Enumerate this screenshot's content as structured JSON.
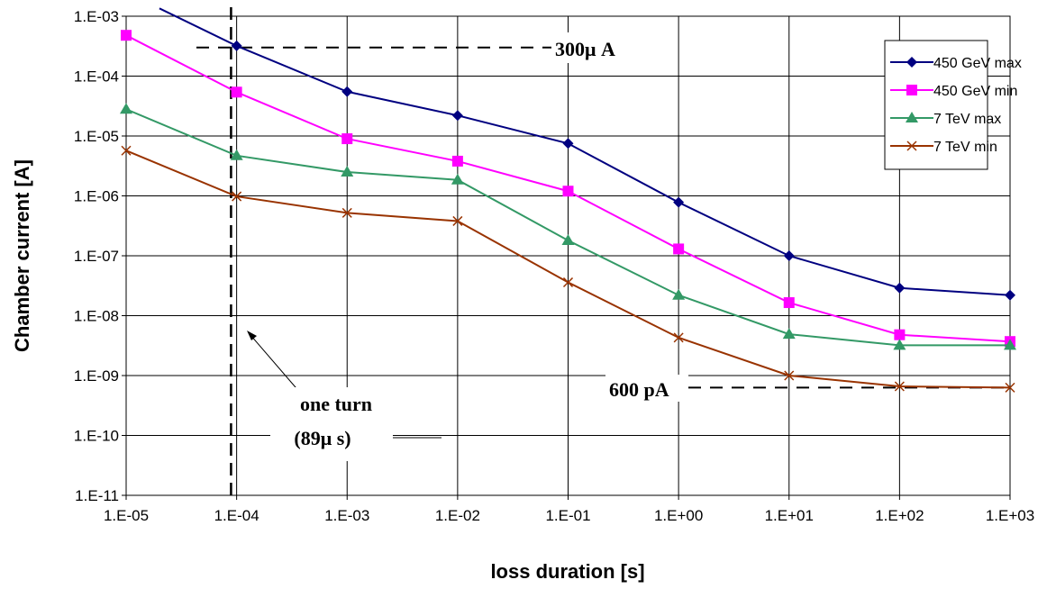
{
  "chart_data": {
    "type": "line",
    "xscale": "log",
    "yscale": "log",
    "xlabel": "loss duration [s]",
    "ylabel": "Chamber current [A]",
    "xlim": [
      1e-05,
      1000.0
    ],
    "ylim": [
      1e-11,
      0.001
    ],
    "x_tick_labels": [
      "1.E-05",
      "1.E-04",
      "1.E-03",
      "1.E-02",
      "1.E-01",
      "1.E+00",
      "1.E+01",
      "1.E+02",
      "1.E+03"
    ],
    "y_tick_labels": [
      "1.E-11",
      "1.E-10",
      "1.E-09",
      "1.E-08",
      "1.E-07",
      "1.E-06",
      "1.E-05",
      "1.E-04",
      "1.E-03"
    ],
    "grid": true,
    "legend_position": "top-right",
    "x": [
      1e-05,
      0.0001,
      0.001,
      0.01,
      0.1,
      1,
      10,
      100,
      1000
    ],
    "series": [
      {
        "name": "450 GeV max",
        "color": "#000080",
        "marker": "diamond",
        "line_start_x": 2e-05,
        "line_start_y": 0.00135,
        "values": [
          null,
          0.00032,
          5.5e-05,
          2.2e-05,
          7.5e-06,
          7.8e-07,
          1e-07,
          2.9e-08,
          2.2e-08
        ]
      },
      {
        "name": "450 GeV min",
        "color": "#FF00FF",
        "marker": "square",
        "values": [
          0.00048,
          5.4e-05,
          9e-06,
          3.8e-06,
          1.2e-06,
          1.3e-07,
          1.65e-08,
          4.8e-09,
          3.7e-09
        ]
      },
      {
        "name": "7 TeV max",
        "color": "#339966",
        "marker": "triangle",
        "values": [
          2.8e-05,
          4.7e-06,
          2.5e-06,
          1.85e-06,
          1.8e-07,
          2.2e-08,
          4.9e-09,
          3.2e-09,
          3.2e-09
        ]
      },
      {
        "name": "7 TeV min",
        "color": "#993300",
        "marker": "x",
        "values": [
          5.7e-06,
          9.8e-07,
          5.2e-07,
          3.8e-07,
          3.6e-08,
          4.3e-09,
          1e-09,
          6.6e-10,
          6.3e-10
        ]
      }
    ],
    "annotations": [
      {
        "label": "300μ A",
        "value_x": 0.0001,
        "value_y": 0.0003
      },
      {
        "label": "600 pA",
        "value_y": 6.3e-10
      },
      {
        "label_lines": [
          "one turn",
          "(89μ s)"
        ],
        "value_x": 8.9e-05
      }
    ]
  }
}
